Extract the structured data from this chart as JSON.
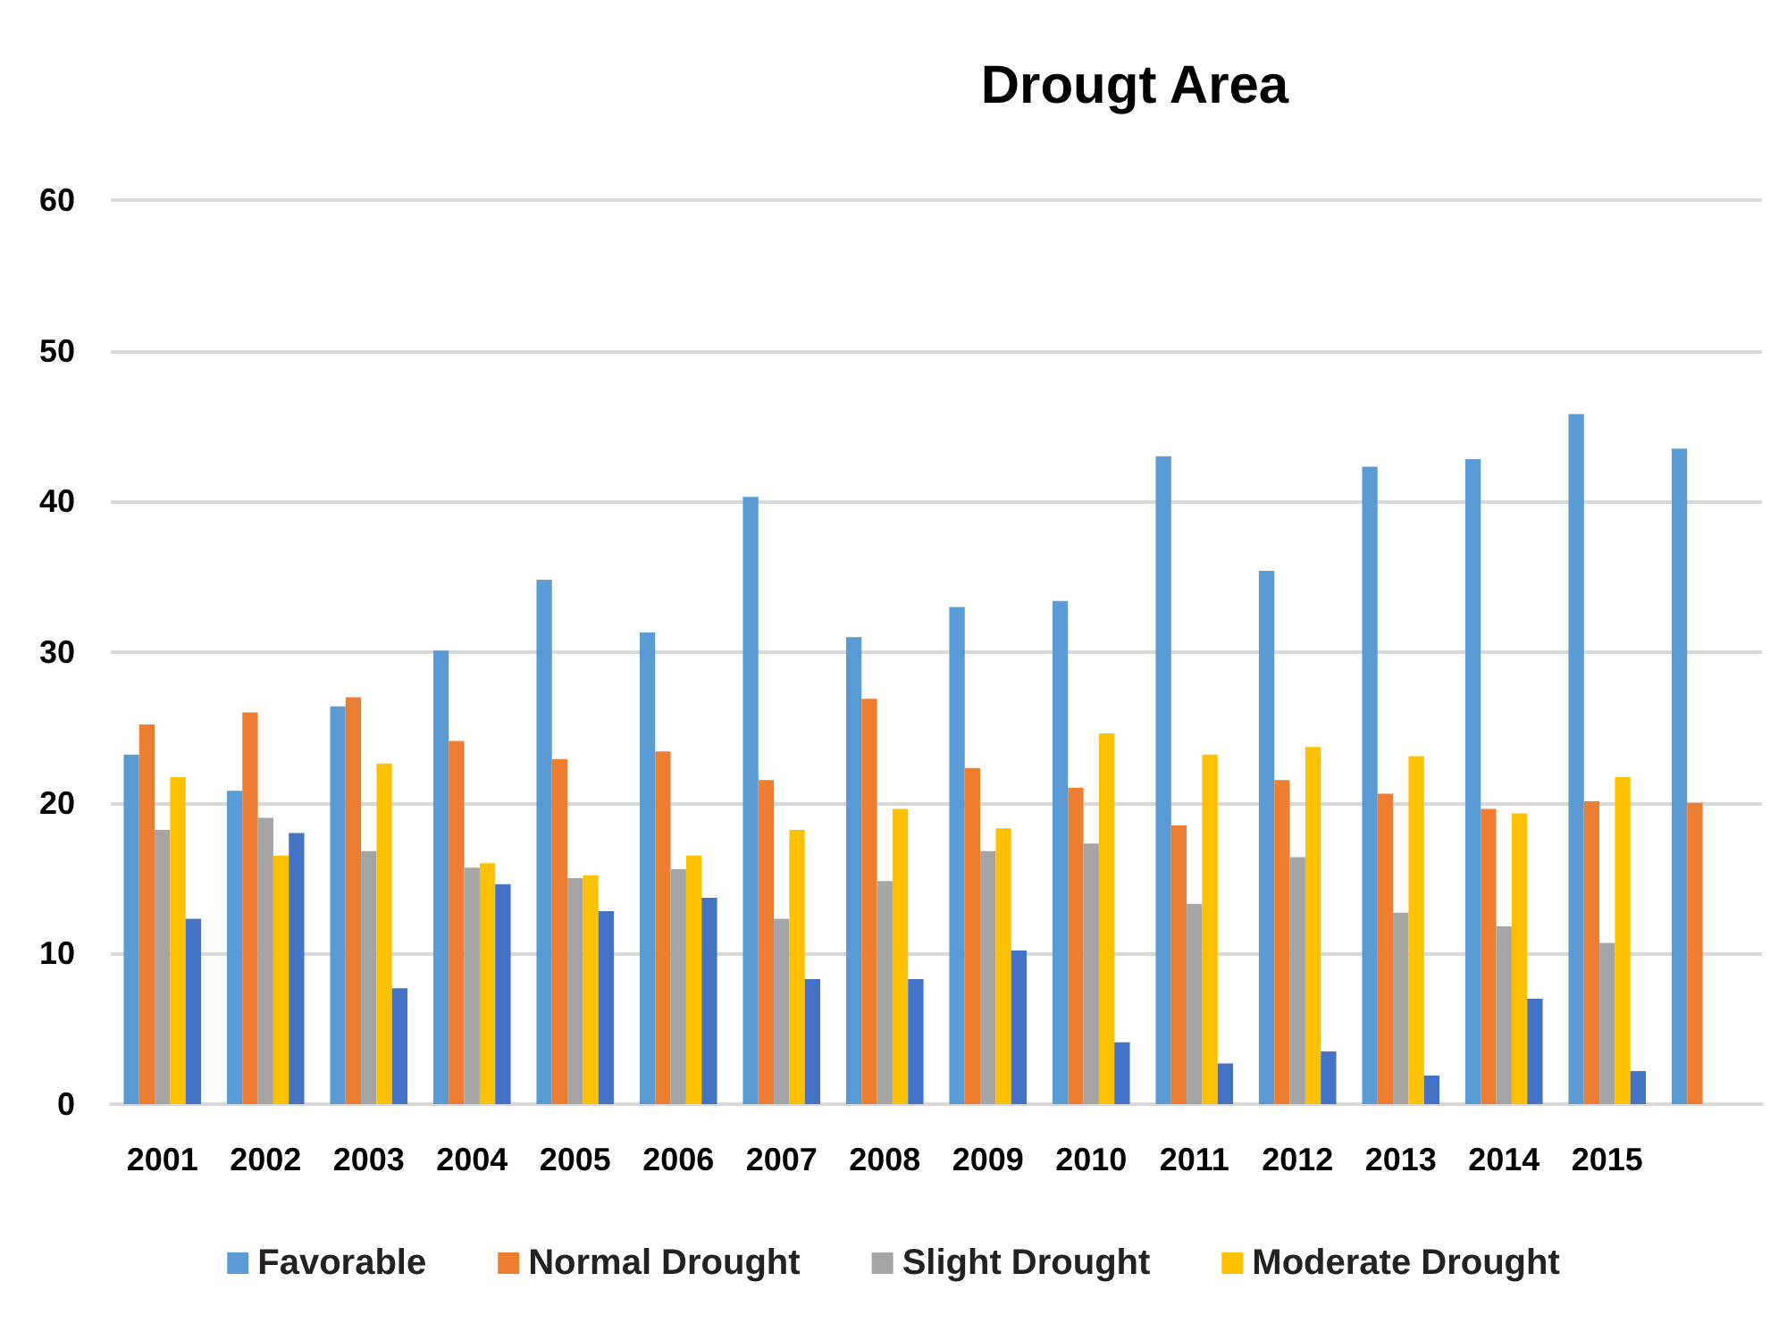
{
  "chart_data": {
    "type": "bar",
    "title": "Drougt Area",
    "categories": [
      "2001",
      "2002",
      "2003",
      "2004",
      "2005",
      "2006",
      "2007",
      "2008",
      "2009",
      "2010",
      "2011",
      "2012",
      "2013",
      "2014",
      "2015",
      null
    ],
    "series": [
      {
        "name": "Favorable",
        "color": "#5b9bd5",
        "values": [
          23.2,
          20.8,
          26.4,
          30.1,
          34.8,
          31.3,
          40.3,
          31,
          33,
          33.4,
          43,
          35.4,
          42.3,
          42.8,
          45.8,
          43.5
        ]
      },
      {
        "name": "Normal Drought",
        "color": "#ed7d31",
        "values": [
          25.2,
          26,
          27,
          24.1,
          22.9,
          23.4,
          21.5,
          26.9,
          22.3,
          21,
          18.5,
          21.5,
          20.6,
          19.6,
          20.1,
          20
        ]
      },
      {
        "name": "Slight Drought",
        "color": "#a5a5a5",
        "values": [
          18.2,
          19,
          16.8,
          15.7,
          15,
          15.6,
          12.3,
          14.8,
          16.8,
          17.3,
          13.3,
          16.4,
          12.7,
          11.8,
          10.7,
          null
        ]
      },
      {
        "name": "Moderate Drought",
        "color": "#ffc000",
        "values": [
          21.7,
          16.5,
          22.6,
          16,
          15.2,
          16.5,
          18.2,
          19.6,
          18.3,
          24.6,
          23.2,
          23.7,
          23.1,
          19.3,
          21.7,
          null
        ]
      },
      {
        "color": "#4472c4",
        "values": [
          12.3,
          18,
          7.7,
          14.6,
          12.8,
          13.7,
          8.3,
          8.3,
          10.2,
          4.1,
          2.7,
          3.5,
          1.9,
          7,
          2.2,
          null
        ]
      }
    ],
    "ylim": [
      0,
      60
    ],
    "yticks": [
      0,
      10,
      20,
      30,
      40,
      50,
      60
    ],
    "grid": "y",
    "legend": "bottom"
  }
}
